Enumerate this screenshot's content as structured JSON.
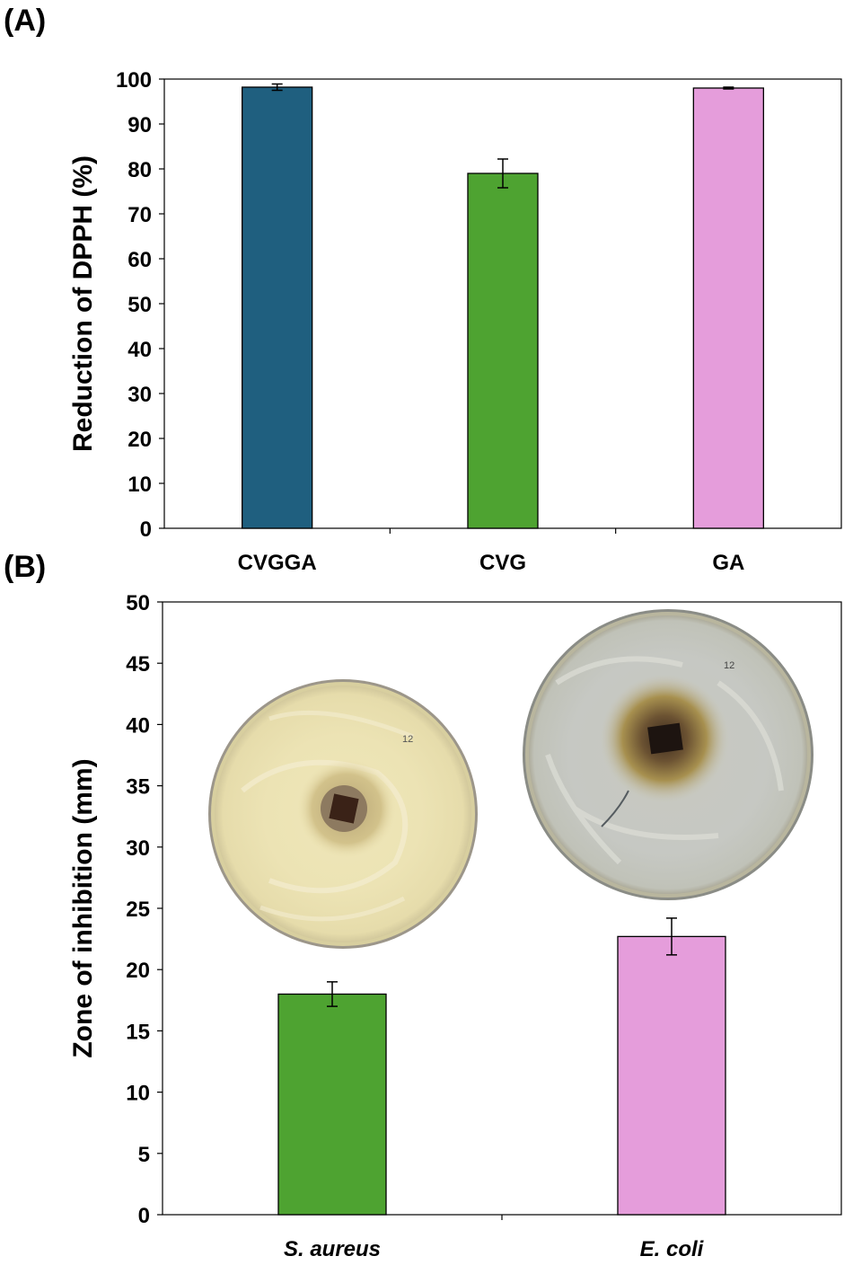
{
  "panels": [
    {
      "label": "(A)"
    },
    {
      "label": "(B)"
    }
  ],
  "chart_data": [
    {
      "panel": "(A)",
      "type": "bar",
      "ylabel": "Reduction of DPPH (%)",
      "xlabel": "",
      "ylim": [
        0,
        100
      ],
      "yticks": [
        0,
        10,
        20,
        30,
        40,
        50,
        60,
        70,
        80,
        90,
        100
      ],
      "categories": [
        "CVGGA",
        "CVG",
        "GA"
      ],
      "values": [
        98.2,
        79.0,
        98.0
      ],
      "errors": [
        0.7,
        3.2,
        0.2
      ],
      "colors": [
        "#1f5f7f",
        "#4ea331",
        "#e59ddb"
      ],
      "grid": false,
      "legend": "none"
    },
    {
      "panel": "(B)",
      "type": "bar",
      "ylabel": "Zone of inhibition (mm)",
      "xlabel": "",
      "ylim": [
        0,
        50
      ],
      "yticks": [
        0,
        5,
        10,
        15,
        20,
        25,
        30,
        35,
        40,
        45,
        50
      ],
      "categories": [
        "S. aureus",
        "E. coli"
      ],
      "values": [
        18.0,
        22.7
      ],
      "errors": [
        1.0,
        1.5
      ],
      "colors": [
        "#4ea331",
        "#e59ddb"
      ],
      "grid": false,
      "legend": "none",
      "images": [
        {
          "name": "s-aureus-petri-dish-photo",
          "caption_text": "12"
        },
        {
          "name": "e-coli-petri-dish-photo",
          "caption_text": "12"
        }
      ]
    }
  ]
}
